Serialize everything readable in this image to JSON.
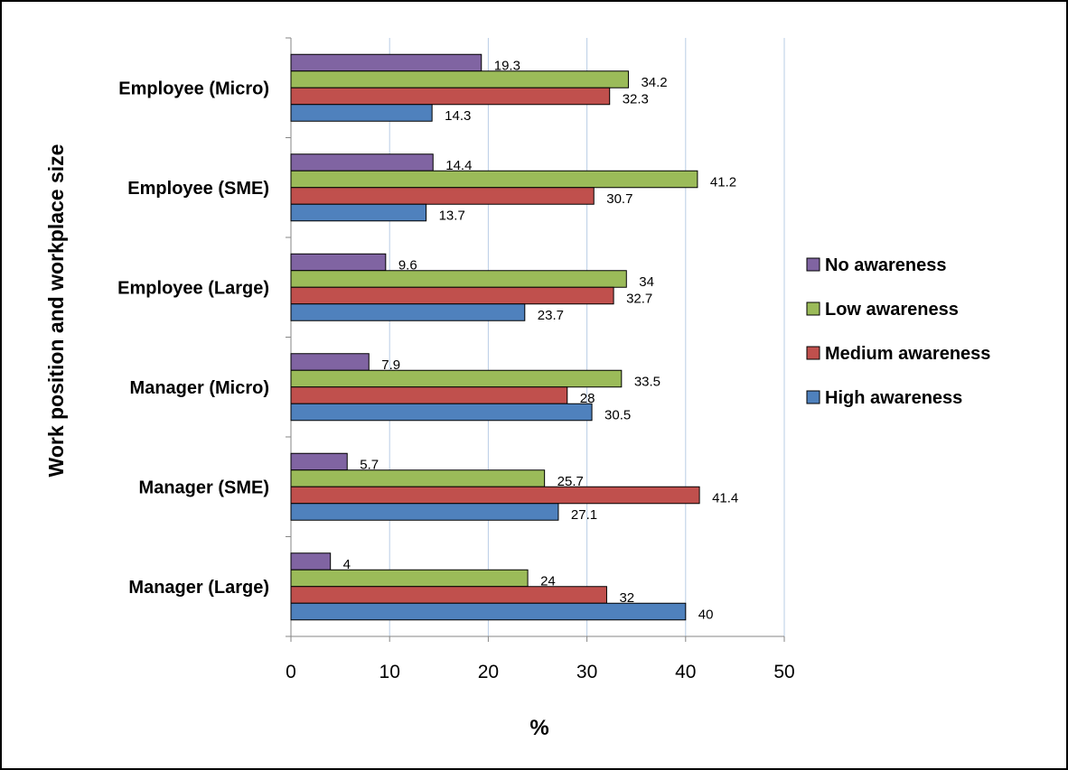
{
  "chart_data": {
    "type": "bar",
    "orientation": "horizontal",
    "title": "",
    "xlabel": "%",
    "ylabel": "Work position and workplace size",
    "xlim": [
      0,
      50
    ],
    "xticks": [
      0,
      10,
      20,
      30,
      40,
      50
    ],
    "grid": "vertical",
    "legend_position": "right",
    "categories": [
      "Employee (Micro)",
      "Employee (SME)",
      "Employee (Large)",
      "Manager (Micro)",
      "Manager (SME)",
      "Manager (Large)"
    ],
    "series": [
      {
        "name": "No awareness",
        "color": "#8064A2",
        "values": [
          19.3,
          14.4,
          9.6,
          7.9,
          5.7,
          4
        ]
      },
      {
        "name": "Low awareness",
        "color": "#9BBB59",
        "values": [
          34.2,
          41.2,
          34,
          33.5,
          25.7,
          24
        ]
      },
      {
        "name": "Medium awareness",
        "color": "#C0504D",
        "values": [
          32.3,
          30.7,
          32.7,
          28,
          41.4,
          32
        ]
      },
      {
        "name": "High awareness",
        "color": "#4F81BD",
        "values": [
          14.3,
          13.7,
          23.7,
          30.5,
          27.1,
          40
        ]
      }
    ]
  }
}
